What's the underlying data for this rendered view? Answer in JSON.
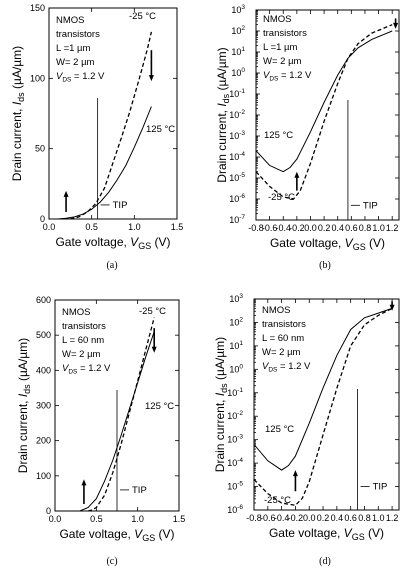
{
  "chart_data": [
    {
      "id": "a",
      "type": "line",
      "caption": "(a)",
      "xlabel": "Gate voltage, ",
      "xsub": "V",
      "xsubsub": "GS",
      "xunit": " (V)",
      "ylabel": "Drain current, ",
      "ysub": "I",
      "ysubsub": "ds",
      "yunit": " (µA/µm)",
      "xlim": [
        0.0,
        1.5
      ],
      "ylim": [
        0,
        150
      ],
      "yscale": "linear",
      "xticks": [
        0.0,
        0.5,
        1.0,
        1.5
      ],
      "xtick_labels": [
        "0.0",
        "0.5",
        "1.0",
        "1.5"
      ],
      "yticks": [
        0,
        50,
        100,
        150
      ],
      "ytick_labels": [
        "0",
        "50",
        "100",
        "150"
      ],
      "annotations": [
        "NMOS",
        "transistors",
        "L =1 µm",
        "W= 2 µm",
        "V",
        "DS",
        " = 1.2 V"
      ],
      "series": [
        {
          "name": "-25 °C",
          "style": "dashed",
          "x": [
            0.25,
            0.35,
            0.45,
            0.55,
            0.65,
            0.75,
            0.85,
            0.95,
            1.05,
            1.15,
            1.2
          ],
          "y": [
            0,
            1.5,
            5,
            11,
            22,
            40,
            58,
            77,
            98,
            120,
            133
          ]
        },
        {
          "name": "125 °C",
          "style": "solid",
          "x": [
            0.1,
            0.2,
            0.3,
            0.4,
            0.5,
            0.6,
            0.7,
            0.8,
            0.9,
            1.0,
            1.1,
            1.2
          ],
          "y": [
            0,
            0.5,
            1.5,
            3.5,
            7,
            12,
            19,
            28,
            38,
            51,
            65,
            80
          ]
        }
      ],
      "tip": {
        "label": "TIP",
        "x": 0.57,
        "label_y": 10
      },
      "arrows": [
        {
          "x": 0.2,
          "from_y": 5,
          "to_y": 20
        },
        {
          "x": 1.2,
          "from_y": 120,
          "to_y": 98
        }
      ]
    },
    {
      "id": "b",
      "type": "line",
      "caption": "(b)",
      "xlabel": "Gate voltage, ",
      "xsub": "V",
      "xsubsub": "GS",
      "xunit": " (V)",
      "ylabel": "Drain current, ",
      "ysub": "I",
      "ysubsub": "ds",
      "yunit": " (µA/µm)",
      "xlim": [
        -0.8,
        1.3
      ],
      "ylim": [
        -7,
        3
      ],
      "yscale": "log",
      "xticks": [
        -0.8,
        -0.6,
        -0.4,
        -0.2,
        0.0,
        0.2,
        0.4,
        0.6,
        0.8,
        1.0,
        1.2
      ],
      "xtick_labels": [
        "-0.8",
        "-0.6",
        "-0.4",
        "-0.2",
        "0.0",
        "0.2",
        "0.4",
        "0.6",
        "0.8",
        "1.0",
        "1.2"
      ],
      "yticks": [
        -7,
        -6,
        -5,
        -4,
        -3,
        -2,
        -1,
        0,
        1,
        2,
        3
      ],
      "ytick_labels": [
        "10",
        "10",
        "10",
        "10",
        "10",
        "10",
        "10",
        "10",
        "10",
        "10",
        "10"
      ],
      "ytick_exponents": [
        "-7",
        "-6",
        "-5",
        "-4",
        "-3",
        "-2",
        "-1",
        "0",
        "1",
        "2",
        "3"
      ],
      "annotations": [
        "NMOS",
        "transistors",
        "L =1 µm",
        "W= 2 µm",
        "V",
        "DS",
        " = 1.2 V"
      ],
      "series": [
        {
          "name": "125 °C",
          "style": "solid",
          "x": [
            -0.8,
            -0.6,
            -0.4,
            -0.3,
            -0.2,
            0.0,
            0.2,
            0.4,
            0.55,
            0.7,
            0.9,
            1.2
          ],
          "y": [
            -3.7,
            -4.4,
            -4.7,
            -4.5,
            -4.1,
            -2.8,
            -1.4,
            -0.1,
            0.7,
            1.2,
            1.6,
            2.0
          ]
        },
        {
          "name": "-25 °C",
          "style": "dashed",
          "x": [
            -0.8,
            -0.6,
            -0.4,
            -0.25,
            -0.15,
            0.0,
            0.2,
            0.4,
            0.55,
            0.7,
            0.9,
            1.2
          ],
          "y": [
            -4.7,
            -5.4,
            -5.9,
            -6.0,
            -5.6,
            -4.3,
            -2.3,
            -0.5,
            0.7,
            1.4,
            1.9,
            2.3
          ]
        }
      ],
      "tip": {
        "label": "TIP",
        "x": 0.55,
        "label_y": -6.3
      },
      "arrows": [
        {
          "x": -0.2,
          "from_y": -5.6,
          "to_y": -4.7
        },
        {
          "x": 1.25,
          "from_y": 2.6,
          "to_y": 2.1
        }
      ]
    },
    {
      "id": "c",
      "type": "line",
      "caption": "(c)",
      "xlabel": "Gate voltage, ",
      "xsub": "V",
      "xsubsub": "GS",
      "xunit": " (V)",
      "ylabel": "Drain current, ",
      "ysub": "I",
      "ysubsub": "ds",
      "yunit": " (µA/µm)",
      "xlim": [
        0.0,
        1.5
      ],
      "ylim": [
        0,
        600
      ],
      "yscale": "linear",
      "xticks": [
        0.0,
        0.5,
        1.0,
        1.5
      ],
      "xtick_labels": [
        "0.0",
        "0.5",
        "1.0",
        "1.5"
      ],
      "yticks": [
        0,
        100,
        200,
        300,
        400,
        500,
        600
      ],
      "ytick_labels": [
        "0",
        "100",
        "200",
        "300",
        "400",
        "500",
        "600"
      ],
      "annotations": [
        "NMOS",
        "transistors",
        "L = 60 nm",
        "W= 2 µm",
        "V",
        "DS",
        " = 1.2 V"
      ],
      "series": [
        {
          "name": "-25 °C",
          "style": "dashed",
          "x": [
            0.4,
            0.45,
            0.5,
            0.6,
            0.7,
            0.8,
            0.9,
            1.0,
            1.1,
            1.2
          ],
          "y": [
            0,
            3,
            10,
            45,
            110,
            190,
            280,
            370,
            460,
            550
          ]
        },
        {
          "name": "125 °C",
          "style": "solid",
          "x": [
            0.3,
            0.4,
            0.5,
            0.6,
            0.7,
            0.8,
            0.9,
            1.0,
            1.1,
            1.2
          ],
          "y": [
            0,
            10,
            35,
            85,
            145,
            215,
            290,
            365,
            440,
            510
          ]
        }
      ],
      "tip": {
        "label": "TIP",
        "x": 0.75,
        "label_y": 60
      },
      "arrows": [
        {
          "x": 0.35,
          "from_y": 20,
          "to_y": 90
        },
        {
          "x": 1.2,
          "from_y": 520,
          "to_y": 450
        }
      ]
    },
    {
      "id": "d",
      "type": "line",
      "caption": "(d)",
      "xlabel": "Gate voltage, ",
      "xsub": "V",
      "xsubsub": "GS",
      "xunit": " (V)",
      "ylabel": "Drain current, ",
      "ysub": "I",
      "ysubsub": "ds",
      "yunit": " (µA/µm)",
      "xlim": [
        -0.8,
        1.3
      ],
      "ylim": [
        -6,
        3
      ],
      "yscale": "log",
      "xticks": [
        -0.8,
        -0.6,
        -0.4,
        -0.2,
        0.0,
        0.2,
        0.4,
        0.6,
        0.8,
        1.0,
        1.2
      ],
      "xtick_labels": [
        "-0.8",
        "-0.6",
        "-0.4",
        "-0.2",
        "0.0",
        "0.2",
        "0.4",
        "0.6",
        "0.8",
        "1.0",
        "1.2"
      ],
      "yticks": [
        -6,
        -5,
        -4,
        -3,
        -2,
        -1,
        0,
        1,
        2,
        3
      ],
      "ytick_labels": [
        "10",
        "10",
        "10",
        "10",
        "10",
        "10",
        "10",
        "10",
        "10",
        "10"
      ],
      "ytick_exponents": [
        "-6",
        "-5",
        "-4",
        "-3",
        "-2",
        "-1",
        "0",
        "1",
        "2",
        "3"
      ],
      "annotations": [
        "NMOS",
        "transistors",
        "L = 60 nm",
        "W= 2 µm",
        "V",
        "DS",
        " = 1.2 V"
      ],
      "series": [
        {
          "name": "125 °C",
          "style": "solid",
          "x": [
            -0.8,
            -0.6,
            -0.4,
            -0.3,
            -0.2,
            0.0,
            0.2,
            0.4,
            0.6,
            0.8,
            1.0,
            1.2
          ],
          "y": [
            -3.2,
            -3.9,
            -4.3,
            -4.1,
            -3.7,
            -2.3,
            -0.8,
            0.6,
            1.7,
            2.2,
            2.4,
            2.6
          ]
        },
        {
          "name": "-25 °C",
          "style": "dashed",
          "x": [
            -0.8,
            -0.6,
            -0.4,
            -0.2,
            -0.1,
            0.0,
            0.2,
            0.4,
            0.6,
            0.8,
            1.0,
            1.2
          ],
          "y": [
            -4.7,
            -5.3,
            -5.7,
            -5.8,
            -5.5,
            -4.8,
            -2.8,
            -0.8,
            1.0,
            1.9,
            2.3,
            2.6
          ]
        }
      ],
      "tip": {
        "label": "TIP",
        "x": 0.7,
        "label_y": -5.0
      },
      "arrows": [
        {
          "x": -0.2,
          "from_y": -5.2,
          "to_y": -4.3
        },
        {
          "x": 1.2,
          "from_y": 2.9,
          "to_y": 2.5
        }
      ]
    }
  ]
}
